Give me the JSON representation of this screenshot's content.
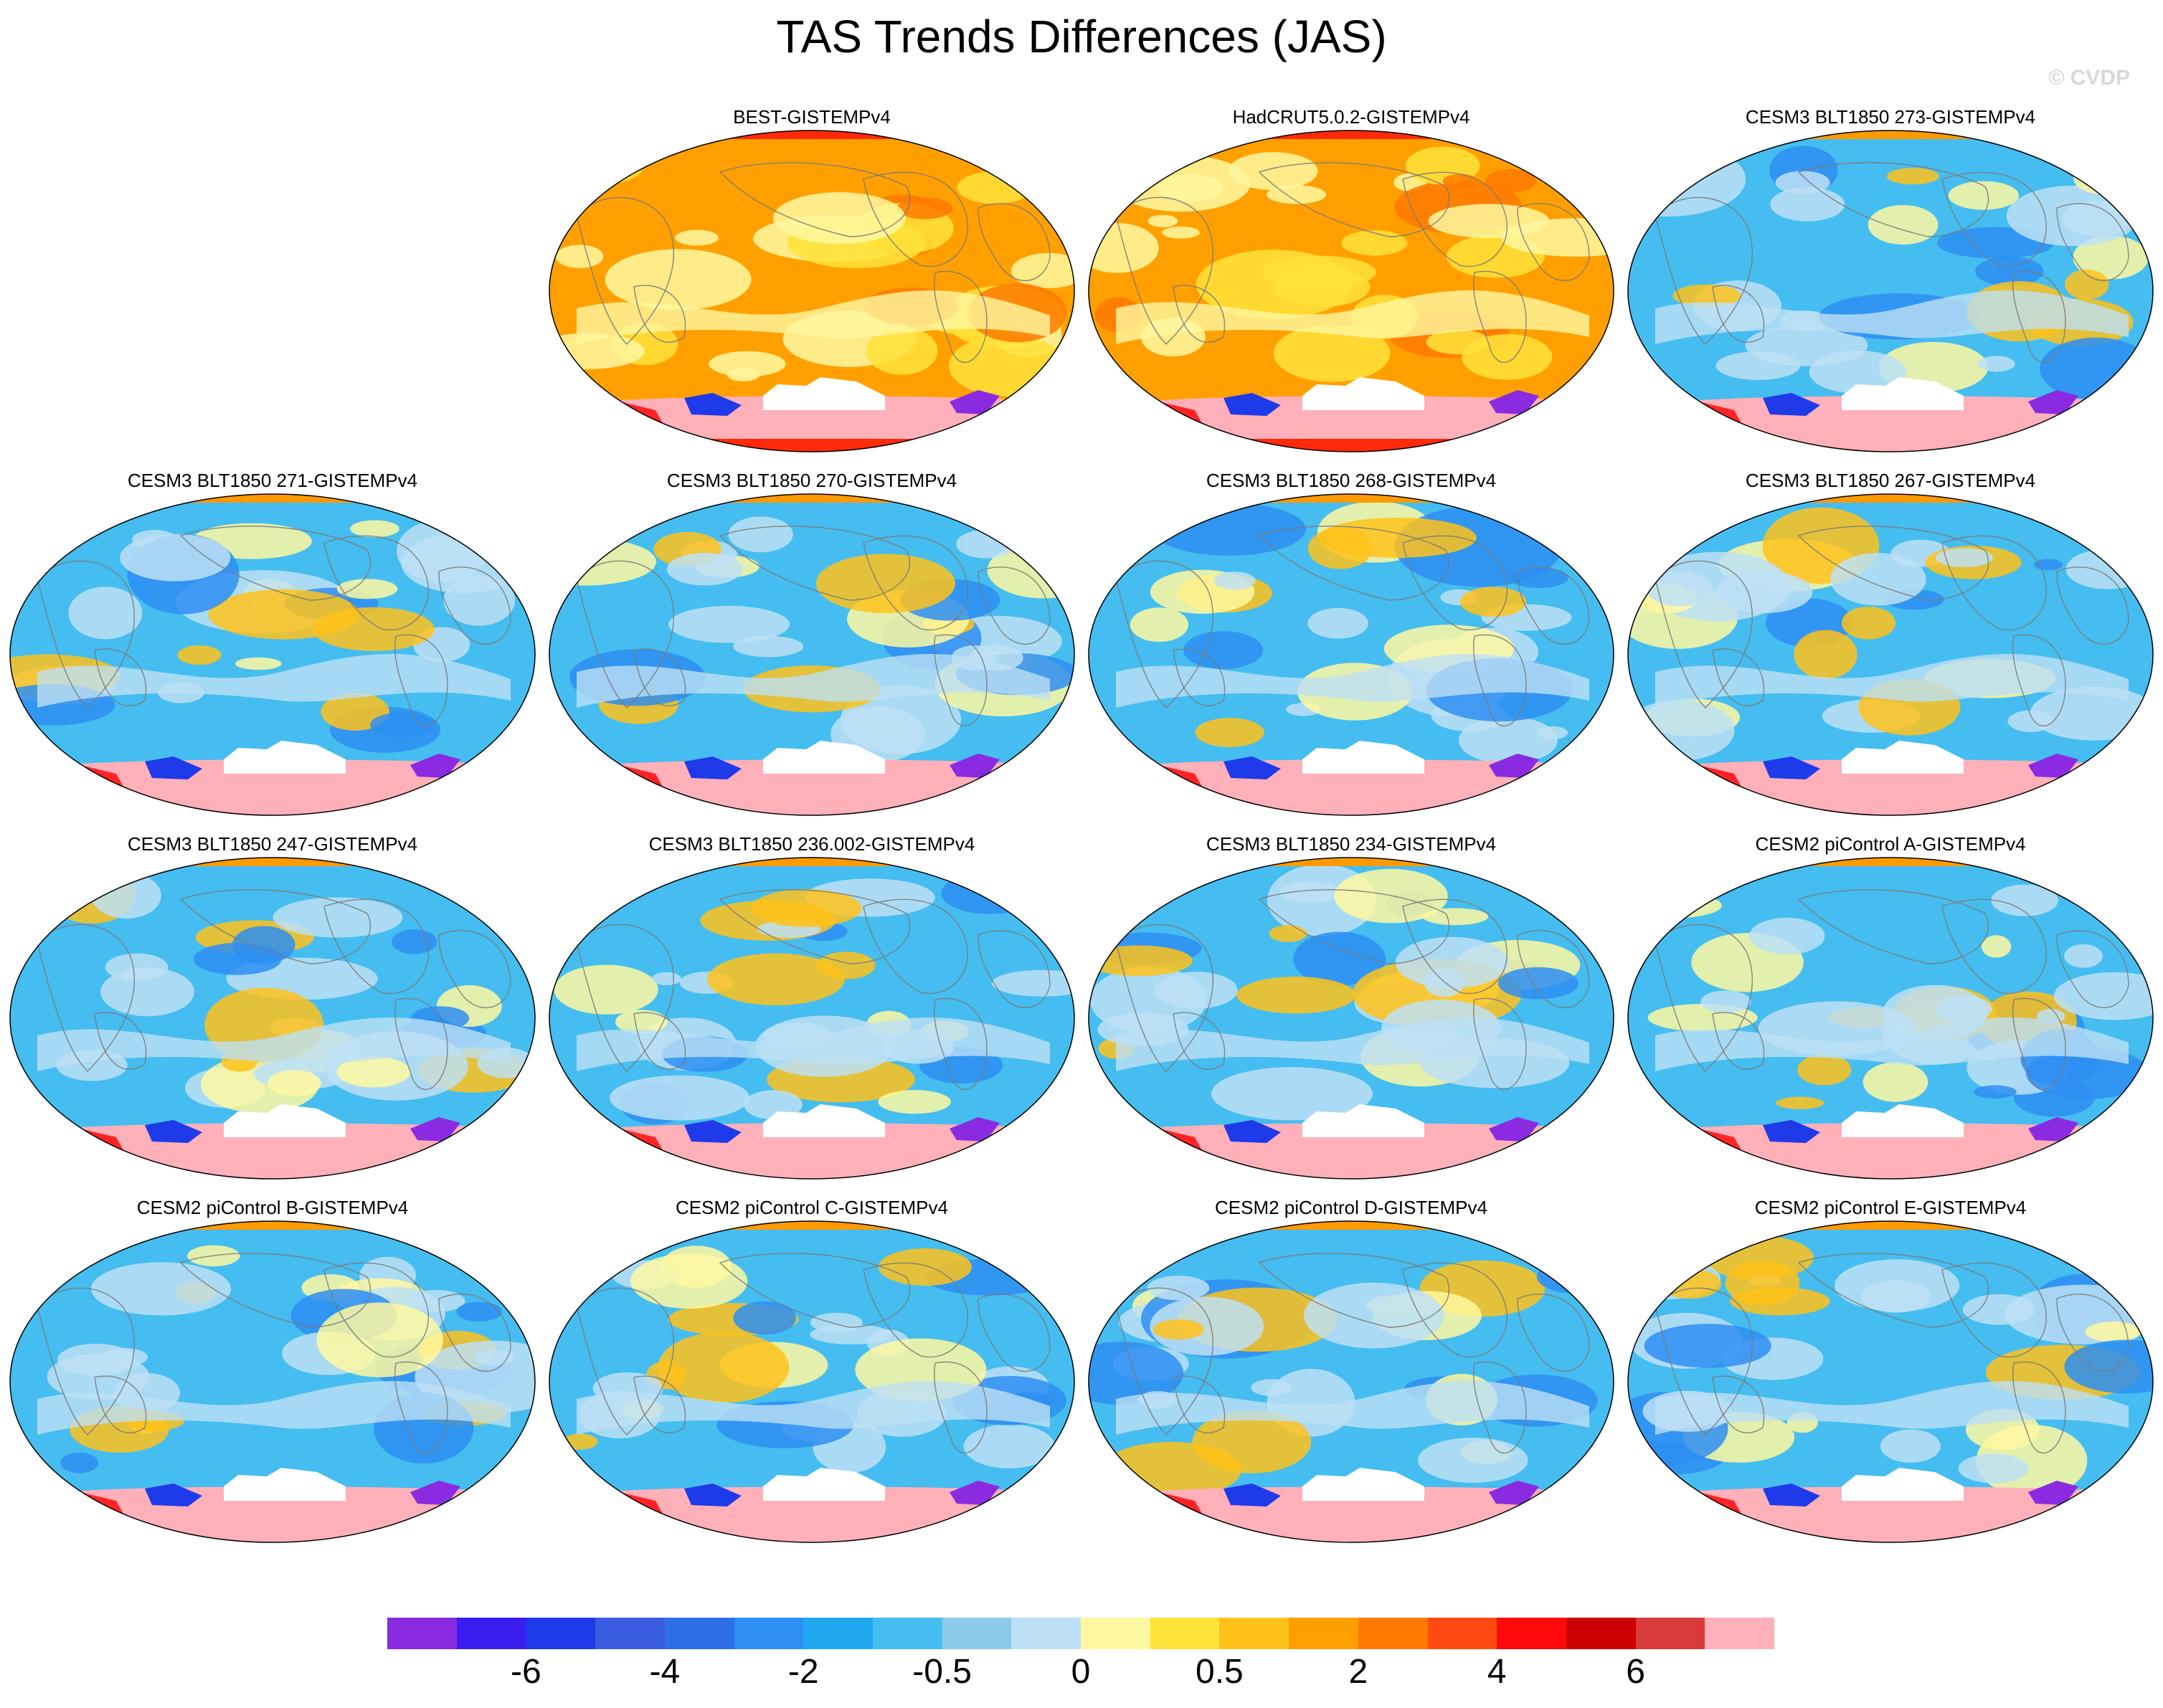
{
  "title": "TAS Trends Differences (JAS)",
  "credit": "© CVDP",
  "panels": [
    {
      "title": "BEST-GISTEMPv4",
      "style": "warm"
    },
    {
      "title": "HadCRUT5.0.2-GISTEMPv4",
      "style": "warm"
    },
    {
      "title": "CESM3 BLT1850 273-GISTEMPv4",
      "style": "cool"
    },
    {
      "title": "CESM3 BLT1850 271-GISTEMPv4",
      "style": "cool"
    },
    {
      "title": "CESM3 BLT1850 270-GISTEMPv4",
      "style": "cool"
    },
    {
      "title": "CESM3 BLT1850 268-GISTEMPv4",
      "style": "mixed"
    },
    {
      "title": "CESM3 BLT1850 267-GISTEMPv4",
      "style": "mixed"
    },
    {
      "title": "CESM3 BLT1850 247-GISTEMPv4",
      "style": "mixed"
    },
    {
      "title": "CESM3 BLT1850 236.002-GISTEMPv4",
      "style": "mixed"
    },
    {
      "title": "CESM3 BLT1850 234-GISTEMPv4",
      "style": "cool"
    },
    {
      "title": "CESM2 piControl A-GISTEMPv4",
      "style": "mixed"
    },
    {
      "title": "CESM2 piControl B-GISTEMPv4",
      "style": "mixed"
    },
    {
      "title": "CESM2 piControl C-GISTEMPv4",
      "style": "mixed"
    },
    {
      "title": "CESM2 piControl D-GISTEMPv4",
      "style": "mixed"
    },
    {
      "title": "CESM2 piControl E-GISTEMPv4",
      "style": "mixed"
    }
  ],
  "colorbar": {
    "colors": [
      "#8a2be2",
      "#3a1ef0",
      "#1f3ae8",
      "#3a5ce0",
      "#2d6fe8",
      "#2e8ef2",
      "#1fa8f0",
      "#45bdf0",
      "#8ccaec",
      "#bde0f5",
      "#fff8a0",
      "#ffe23a",
      "#ffc21a",
      "#ffa000",
      "#ff7a00",
      "#ff4a12",
      "#ff0a0a",
      "#cc0000",
      "#d93a3a",
      "#ffb0b8"
    ],
    "labels": [
      "-6",
      "-4",
      "-2",
      "-0.5",
      "0",
      "0.5",
      "2",
      "4",
      "6"
    ],
    "label_boundaries": [
      2,
      4,
      6,
      8,
      10,
      12,
      14,
      16,
      18
    ]
  },
  "color_scale": {
    "ocean_cool": "#45bdf0",
    "ocean_warm": "#ffa000",
    "pale_cool": "#bde0f5",
    "pale_warm": "#fff8a0",
    "coast": "#7a7a7a",
    "antarctic_fill": "#ffb0b8",
    "polar_red": "#ff2a0a",
    "polar_orange": "#ff9a00",
    "missing": "#ffffff"
  }
}
